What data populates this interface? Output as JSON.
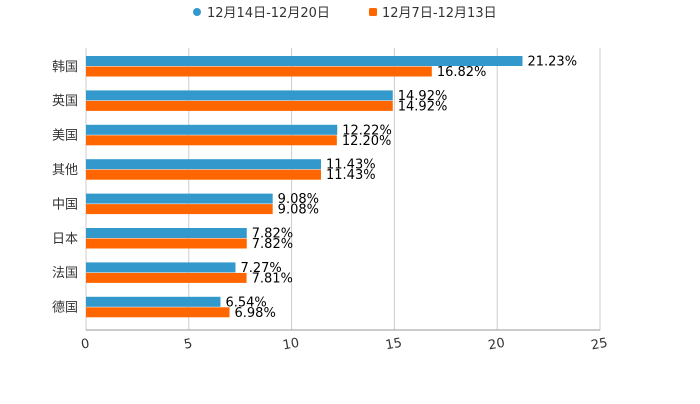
{
  "chart_data": {
    "type": "bar",
    "orientation": "horizontal",
    "categories": [
      "韩国",
      "英国",
      "美国",
      "其他",
      "中国",
      "日本",
      "法国",
      "德国"
    ],
    "series": [
      {
        "name": "12月14日-12月20日",
        "color": "#3399cc",
        "values": [
          21.23,
          14.92,
          12.22,
          11.43,
          9.08,
          7.82,
          7.27,
          6.54
        ],
        "labels": [
          "21.23%",
          "14.92%",
          "12.22%",
          "11.43%",
          "9.08%",
          "7.82%",
          "7.27%",
          "6.54%"
        ]
      },
      {
        "name": "12月7日-12月13日",
        "color": "#ff6600",
        "values": [
          16.82,
          14.92,
          12.2,
          11.43,
          9.08,
          7.82,
          7.81,
          6.98
        ],
        "labels": [
          "16.82%",
          "14.92%",
          "12.20%",
          "11.43%",
          "9.08%",
          "7.82%",
          "7.81%",
          "6.98%"
        ]
      }
    ],
    "xlim": [
      0,
      25
    ],
    "xticks": [
      "0",
      "5",
      "10",
      "15",
      "20",
      "25"
    ],
    "grid": true,
    "legend_position": "top-center",
    "title": "",
    "xlabel": "",
    "ylabel": ""
  }
}
